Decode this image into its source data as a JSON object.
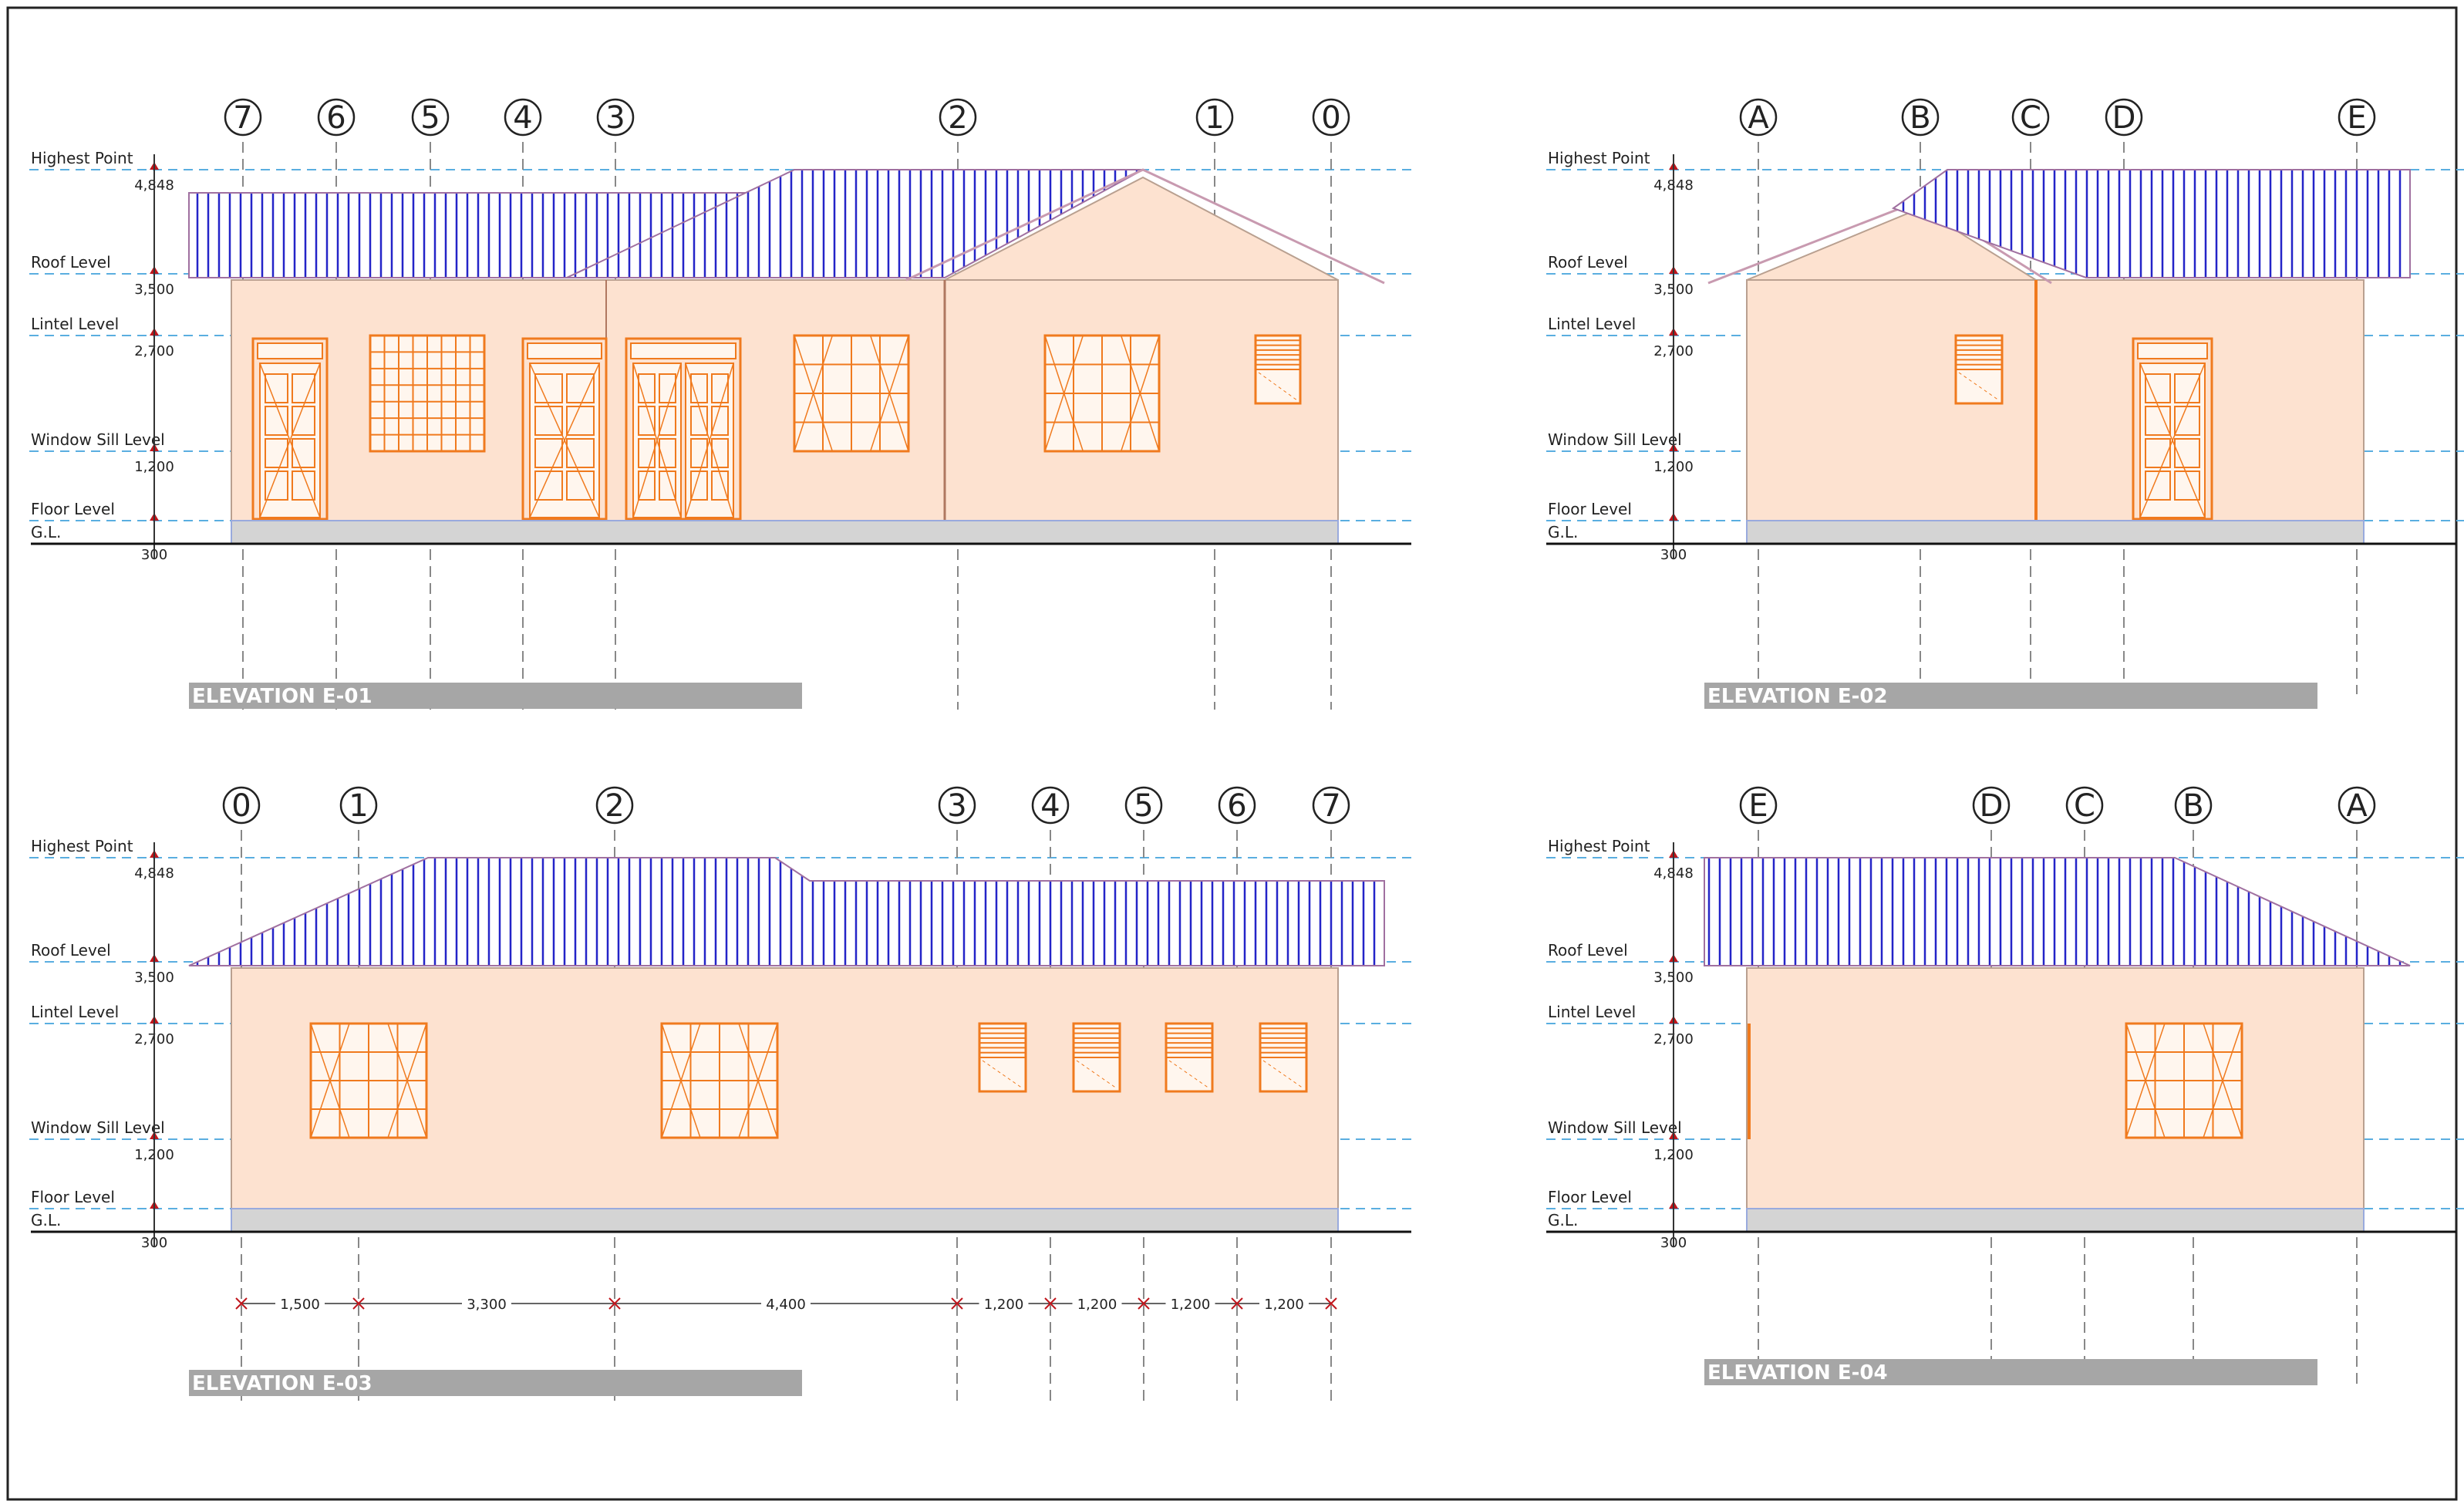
{
  "levels": {
    "highest": {
      "label": "Highest Point",
      "value": "4,848"
    },
    "roof": {
      "label": "Roof Level",
      "value": "3,500"
    },
    "lintel": {
      "label": "Lintel Level",
      "value": "2,700"
    },
    "sill": {
      "label": "Window Sill Level",
      "value": "1,200"
    },
    "floor": {
      "label": "Floor Level",
      "value": ""
    },
    "ground": {
      "label": "G.L.",
      "value": "300"
    }
  },
  "elevations": [
    {
      "title": "ELEVATION E-01",
      "grid": [
        "7",
        "6",
        "5",
        "4",
        "3",
        "2",
        "1",
        "0"
      ]
    },
    {
      "title": "ELEVATION E-02",
      "grid": [
        "A",
        "B",
        "C",
        "D",
        "E"
      ]
    },
    {
      "title": "ELEVATION E-03",
      "grid": [
        "0",
        "1",
        "2",
        "3",
        "4",
        "5",
        "6",
        "7"
      ]
    },
    {
      "title": "ELEVATION E-04",
      "grid": [
        "E",
        "D",
        "C",
        "B",
        "A"
      ]
    }
  ],
  "dimensions_e03": [
    "1,500",
    "3,300",
    "4,400",
    "1,200",
    "1,200",
    "1,200",
    "1,200"
  ],
  "colors": {
    "wall": "#fde2d0",
    "roof": "#2424c8",
    "frame": "#f07a1e",
    "grid": "#5aaee0",
    "plinth": "#d4d4d4",
    "title_bar": "#a6a6a6"
  }
}
